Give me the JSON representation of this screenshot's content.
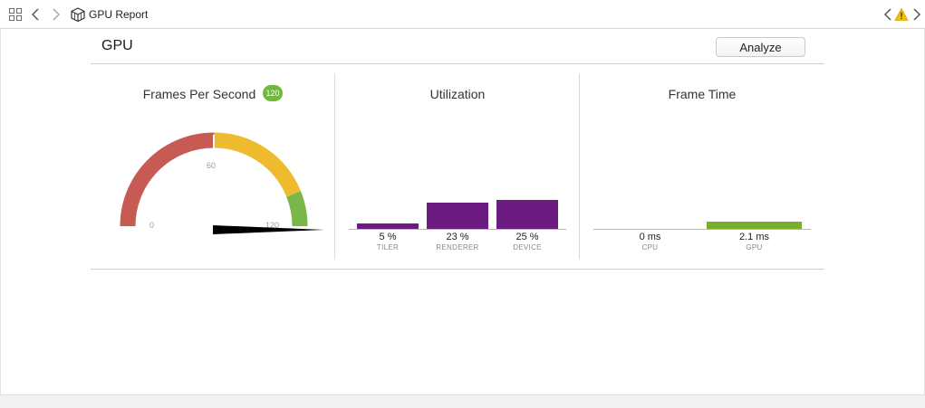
{
  "toolbar": {
    "breadcrumb": "GPU Report",
    "icons": [
      "grid-icon",
      "chevron-left-icon",
      "chevron-right-icon",
      "gpu-report-icon",
      "warning-icon"
    ]
  },
  "header": {
    "title": "GPU",
    "analyze_label": "Analyze"
  },
  "fps_panel": {
    "title": "Frames Per Second",
    "current_fps": "120",
    "current_value": 120,
    "gauge_max": 120,
    "tick_labels": [
      "0",
      "60",
      "120"
    ],
    "zone_colors": {
      "low": "#c75a52",
      "mid": "#eebb2e",
      "high": "#7ab648"
    }
  },
  "utilization_panel": {
    "title": "Utilization",
    "bar_color": "#6b1c80",
    "bars": [
      {
        "value_label": "5 %",
        "caption": "TILER",
        "value": 5
      },
      {
        "value_label": "23 %",
        "caption": "RENDERER",
        "value": 23
      },
      {
        "value_label": "25 %",
        "caption": "DEVICE",
        "value": 25
      }
    ]
  },
  "frame_time_panel": {
    "title": "Frame Time",
    "bar_color": "#7aad2a",
    "bars": [
      {
        "value_label": "0 ms",
        "caption": "CPU",
        "value": 0
      },
      {
        "value_label": "2.1 ms",
        "caption": "GPU",
        "value": 2.1
      }
    ]
  }
}
